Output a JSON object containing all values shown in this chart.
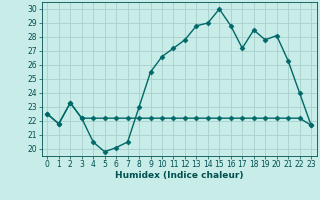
{
  "title": "",
  "xlabel": "Humidex (Indice chaleur)",
  "bg_color": "#c8ece8",
  "grid_color": "#a8d0cc",
  "line_color": "#006868",
  "xlim": [
    -0.5,
    23.5
  ],
  "ylim": [
    19.5,
    30.5
  ],
  "yticks": [
    20,
    21,
    22,
    23,
    24,
    25,
    26,
    27,
    28,
    29,
    30
  ],
  "xticks": [
    0,
    1,
    2,
    3,
    4,
    5,
    6,
    7,
    8,
    9,
    10,
    11,
    12,
    13,
    14,
    15,
    16,
    17,
    18,
    19,
    20,
    21,
    22,
    23
  ],
  "line1_x": [
    0,
    1,
    2,
    3,
    4,
    5,
    6,
    7,
    8,
    9,
    10,
    11,
    12,
    13,
    14,
    15,
    16,
    17,
    18,
    19,
    20,
    21,
    22,
    23
  ],
  "line1_y": [
    22.5,
    21.8,
    23.3,
    22.2,
    20.5,
    19.8,
    20.1,
    20.5,
    23.0,
    25.5,
    26.6,
    27.2,
    27.8,
    28.8,
    29.0,
    30.0,
    28.8,
    27.2,
    28.5,
    27.8,
    28.1,
    26.3,
    24.0,
    21.7
  ],
  "line2_x": [
    0,
    1,
    2,
    3,
    4,
    5,
    6,
    7,
    8,
    9,
    10,
    11,
    12,
    13,
    14,
    15,
    16,
    17,
    18,
    19,
    20,
    21,
    22,
    23
  ],
  "line2_y": [
    22.5,
    21.8,
    23.3,
    22.2,
    22.2,
    22.2,
    22.2,
    22.2,
    22.2,
    22.2,
    22.2,
    22.2,
    22.2,
    22.2,
    22.2,
    22.2,
    22.2,
    22.2,
    22.2,
    22.2,
    22.2,
    22.2,
    22.2,
    21.7
  ],
  "marker": "D",
  "markersize": 2.5,
  "linewidth": 1.0,
  "tick_fontsize": 5.5,
  "label_fontsize": 6.5,
  "tick_color": "#005050",
  "axis_color": "#005050"
}
